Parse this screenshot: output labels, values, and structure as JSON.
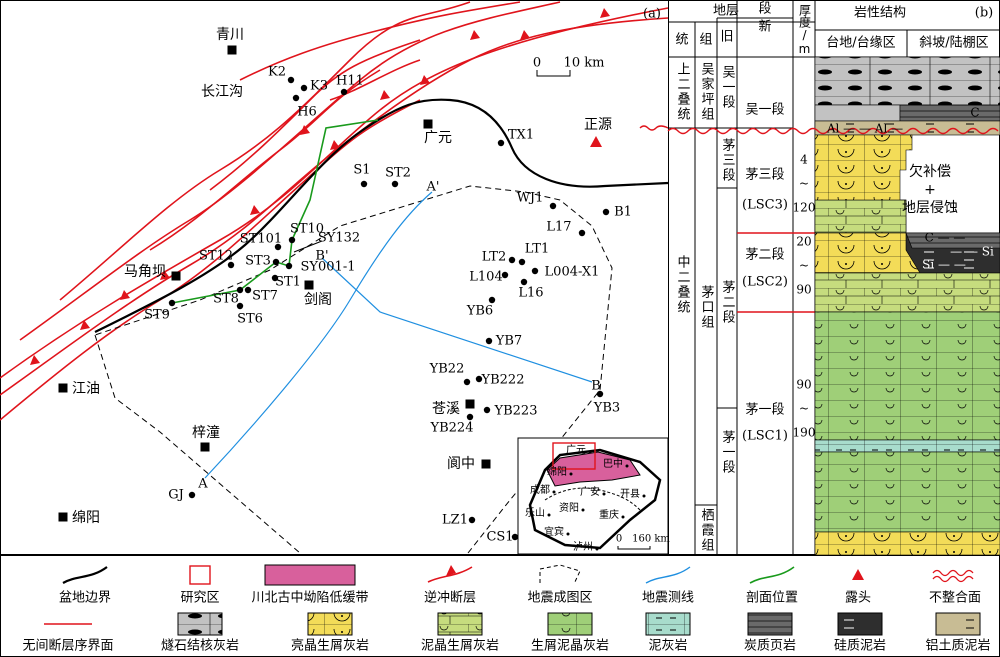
{
  "map": {
    "panel_label": "(a)",
    "scale": [
      "0",
      "10 km"
    ],
    "labels": [
      "青川",
      "K2",
      "K3",
      "H11",
      "H6",
      "长江沟",
      "广元",
      "TX1",
      "正源",
      "S1",
      "ST2",
      "A'",
      "WJ1",
      "B1",
      "L17",
      "ST10",
      "ST101",
      "SY132",
      "B'",
      "ST12",
      "ST3",
      "SY001-1",
      "LT2",
      "LT1",
      "L104",
      "L004-X1",
      "L16",
      "马角坝",
      "ST1",
      "剑阁",
      "ST8",
      "ST7",
      "ST9",
      "ST6",
      "YB6",
      "YB7",
      "江油",
      "YB22",
      "YB222",
      "B",
      "YB3",
      "苍溪",
      "YB223",
      "YB224",
      "梓潼",
      "阆中",
      "GJ",
      "A",
      "绵阳",
      "LZ1",
      "CS1"
    ],
    "inset": {
      "labels": [
        "广元",
        "巴中",
        "绵阳",
        "成都",
        "广安",
        "开县",
        "乐山",
        "资阳",
        "重庆",
        "宜宾",
        "泸州"
      ],
      "scale": [
        "0",
        "160 km"
      ]
    }
  },
  "column": {
    "panel_label": "(b)",
    "header": {
      "strata": "地层",
      "series": "统",
      "formation": "组",
      "member": "段",
      "old": "旧",
      "new": "新",
      "thickness": "厚度/m",
      "lithology": "岩性结构",
      "platform": "台地/台缘区",
      "slope": "斜坡/陆棚区"
    },
    "series": [
      "上二叠统",
      "中二叠统"
    ],
    "formations": [
      "吴家坪组",
      "茅口组",
      "栖霞组"
    ],
    "old_members": [
      "吴一段",
      "茅三段",
      "茅二段",
      "茅一段"
    ],
    "new_members": [
      [
        "吴一段"
      ],
      [
        "茅三段",
        "(LSC3)"
      ],
      [
        "茅二段",
        "(LSC2)"
      ],
      [
        "茅一段",
        "(LSC1)"
      ]
    ],
    "thickness": [
      [
        "4",
        "~",
        "120"
      ],
      [
        "20",
        "~",
        "90"
      ],
      [
        "90",
        "~",
        "190"
      ]
    ],
    "erosion_note": [
      "欠补偿",
      "+",
      "地层侵蚀"
    ],
    "lith_labels": [
      "C",
      "Al  —  —  Al  —",
      "C  — —",
      "— —  Si",
      "Si  — —"
    ]
  },
  "legend": [
    "盆地边界",
    "研究区",
    "川北古中坳陷低缓带",
    "逆冲断层",
    "地震成图区",
    "地震测线",
    "剖面位置",
    "露头",
    "不整合面",
    "无间断层序界面",
    "燧石结核灰岩",
    "亮晶生屑灰岩",
    "泥晶生屑灰岩",
    "生屑泥晶灰岩",
    "泥灰岩",
    "炭质页岩",
    "硅质泥岩",
    "铝土质泥岩"
  ]
}
